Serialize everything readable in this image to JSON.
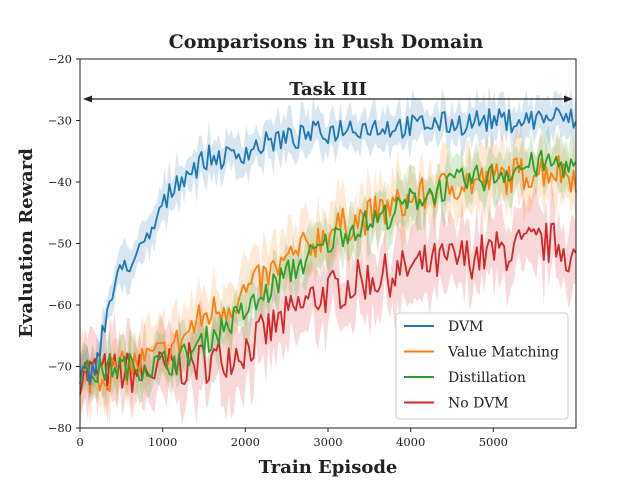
{
  "chart_data": {
    "type": "line",
    "title": "Comparisons in Push Domain",
    "xlabel": "Train Episode",
    "ylabel": "Evaluation Reward",
    "xlim": [
      0,
      6000
    ],
    "ylim": [
      -80,
      -20
    ],
    "xticks": [
      0,
      1000,
      2000,
      3000,
      4000,
      5000
    ],
    "yticks": [
      -80,
      -70,
      -60,
      -50,
      -40,
      -30,
      -20
    ],
    "xtick_labels": [
      "0",
      "1000",
      "2000",
      "3000",
      "4000",
      "5000"
    ],
    "ytick_labels": [
      "−80",
      "−70",
      "−60",
      "−50",
      "−40",
      "−30",
      "−20"
    ],
    "grid": false,
    "legend_position": "lower-right",
    "annotation": {
      "text": "Task III",
      "arrow_from_x": 0,
      "arrow_to_x": 6000,
      "arrow_y": -26.5
    },
    "series": [
      {
        "name": "DVM",
        "color": "#1f77b4",
        "points": [
          [
            0,
            -72
          ],
          [
            150,
            -71
          ],
          [
            250,
            -66
          ],
          [
            350,
            -60
          ],
          [
            450,
            -56
          ],
          [
            550,
            -53
          ],
          [
            650,
            -53
          ],
          [
            750,
            -51
          ],
          [
            850,
            -49
          ],
          [
            950,
            -45
          ],
          [
            1050,
            -43
          ],
          [
            1150,
            -40
          ],
          [
            1250,
            -39
          ],
          [
            1350,
            -38
          ],
          [
            1450,
            -37
          ],
          [
            1550,
            -36
          ],
          [
            1650,
            -36
          ],
          [
            1800,
            -36
          ],
          [
            2000,
            -35
          ],
          [
            2200,
            -34
          ],
          [
            2400,
            -33
          ],
          [
            2600,
            -33
          ],
          [
            2800,
            -32
          ],
          [
            3000,
            -32
          ],
          [
            3200,
            -31
          ],
          [
            3400,
            -31
          ],
          [
            3600,
            -31
          ],
          [
            3800,
            -31
          ],
          [
            4000,
            -31
          ],
          [
            4200,
            -30.5
          ],
          [
            4400,
            -30.5
          ],
          [
            4600,
            -30.5
          ],
          [
            4800,
            -30
          ],
          [
            5000,
            -30
          ],
          [
            5200,
            -30
          ],
          [
            5400,
            -30
          ],
          [
            5600,
            -29.5
          ],
          [
            5800,
            -29.5
          ],
          [
            6000,
            -30
          ]
        ],
        "band": 3
      },
      {
        "name": "Value Matching",
        "color": "#ff7f0e",
        "points": [
          [
            0,
            -72
          ],
          [
            200,
            -71.5
          ],
          [
            400,
            -71
          ],
          [
            600,
            -70
          ],
          [
            800,
            -69
          ],
          [
            1000,
            -68
          ],
          [
            1200,
            -66
          ],
          [
            1400,
            -63
          ],
          [
            1600,
            -61
          ],
          [
            1800,
            -60
          ],
          [
            2000,
            -58
          ],
          [
            2200,
            -56
          ],
          [
            2400,
            -54
          ],
          [
            2600,
            -52
          ],
          [
            2800,
            -50
          ],
          [
            3000,
            -48
          ],
          [
            3200,
            -47
          ],
          [
            3400,
            -46
          ],
          [
            3600,
            -45
          ],
          [
            3800,
            -44
          ],
          [
            4000,
            -43
          ],
          [
            4200,
            -42
          ],
          [
            4400,
            -41
          ],
          [
            4600,
            -40
          ],
          [
            4800,
            -40
          ],
          [
            5000,
            -39.5
          ],
          [
            5200,
            -39
          ],
          [
            5400,
            -38.5
          ],
          [
            5600,
            -38
          ],
          [
            5800,
            -38
          ],
          [
            6000,
            -39
          ]
        ],
        "band": 4.5
      },
      {
        "name": "Distillation",
        "color": "#2ca02c",
        "points": [
          [
            0,
            -71
          ],
          [
            200,
            -71
          ],
          [
            400,
            -70
          ],
          [
            600,
            -70
          ],
          [
            800,
            -70
          ],
          [
            1000,
            -69.5
          ],
          [
            1200,
            -69
          ],
          [
            1400,
            -67
          ],
          [
            1600,
            -65
          ],
          [
            1800,
            -63
          ],
          [
            2000,
            -61
          ],
          [
            2200,
            -59
          ],
          [
            2400,
            -56
          ],
          [
            2600,
            -54
          ],
          [
            2800,
            -52
          ],
          [
            3000,
            -50
          ],
          [
            3200,
            -48
          ],
          [
            3400,
            -47
          ],
          [
            3600,
            -46
          ],
          [
            3800,
            -45
          ],
          [
            4000,
            -43
          ],
          [
            4200,
            -42
          ],
          [
            4400,
            -41
          ],
          [
            4600,
            -40
          ],
          [
            4800,
            -39.5
          ],
          [
            5000,
            -39
          ],
          [
            5200,
            -38
          ],
          [
            5400,
            -37.5
          ],
          [
            5600,
            -37
          ],
          [
            5800,
            -37
          ],
          [
            6000,
            -38
          ]
        ],
        "band": 3.5
      },
      {
        "name": "No DVM",
        "color": "#d62728",
        "points": [
          [
            0,
            -71
          ],
          [
            200,
            -71
          ],
          [
            400,
            -71
          ],
          [
            600,
            -71
          ],
          [
            800,
            -71
          ],
          [
            1000,
            -70.5
          ],
          [
            1200,
            -70
          ],
          [
            1400,
            -69.5
          ],
          [
            1600,
            -69
          ],
          [
            1800,
            -68
          ],
          [
            2000,
            -67
          ],
          [
            2200,
            -65
          ],
          [
            2400,
            -63
          ],
          [
            2600,
            -61
          ],
          [
            2800,
            -59
          ],
          [
            3000,
            -58
          ],
          [
            3200,
            -57
          ],
          [
            3400,
            -56
          ],
          [
            3600,
            -55.5
          ],
          [
            3800,
            -55
          ],
          [
            4000,
            -54
          ],
          [
            4200,
            -53.5
          ],
          [
            4400,
            -53
          ],
          [
            4600,
            -52.5
          ],
          [
            4800,
            -52
          ],
          [
            5000,
            -51.5
          ],
          [
            5200,
            -51
          ],
          [
            5400,
            -50.5
          ],
          [
            5600,
            -50
          ],
          [
            5800,
            -50
          ],
          [
            6000,
            -53
          ]
        ],
        "band": 5.5
      }
    ]
  }
}
